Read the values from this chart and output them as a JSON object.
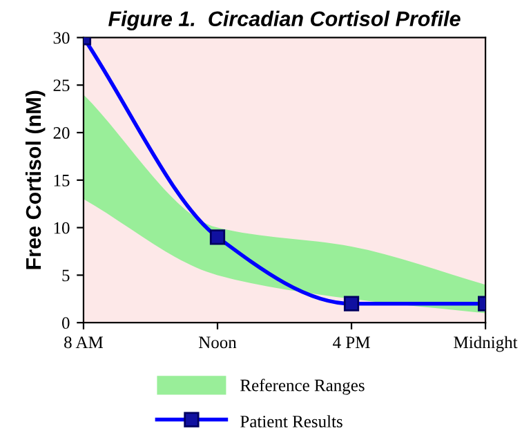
{
  "chart_data": {
    "type": "line",
    "title": "Figure 1.  Circadian Cortisol Profile",
    "ylabel": "Free Cortisol (nM)",
    "categories": [
      "8 AM",
      "Noon",
      "4 PM",
      "Midnight"
    ],
    "series": [
      {
        "name": "Reference Ranges",
        "type": "area",
        "color": "#99ee99",
        "values": [
          24,
          10,
          8,
          4
        ]
      },
      {
        "type": "area",
        "color": "#fde8e8",
        "values": [
          13,
          5,
          2.5,
          1
        ]
      },
      {
        "name": "Patient Results",
        "color": "#0000ff",
        "marker": "square",
        "values": [
          30,
          9,
          2,
          2
        ]
      }
    ],
    "ylim": [
      0,
      30
    ],
    "yticks": [
      0,
      5,
      10,
      15,
      20,
      25,
      30
    ],
    "line_style": "solid",
    "legend": "bottom",
    "grid": false
  }
}
